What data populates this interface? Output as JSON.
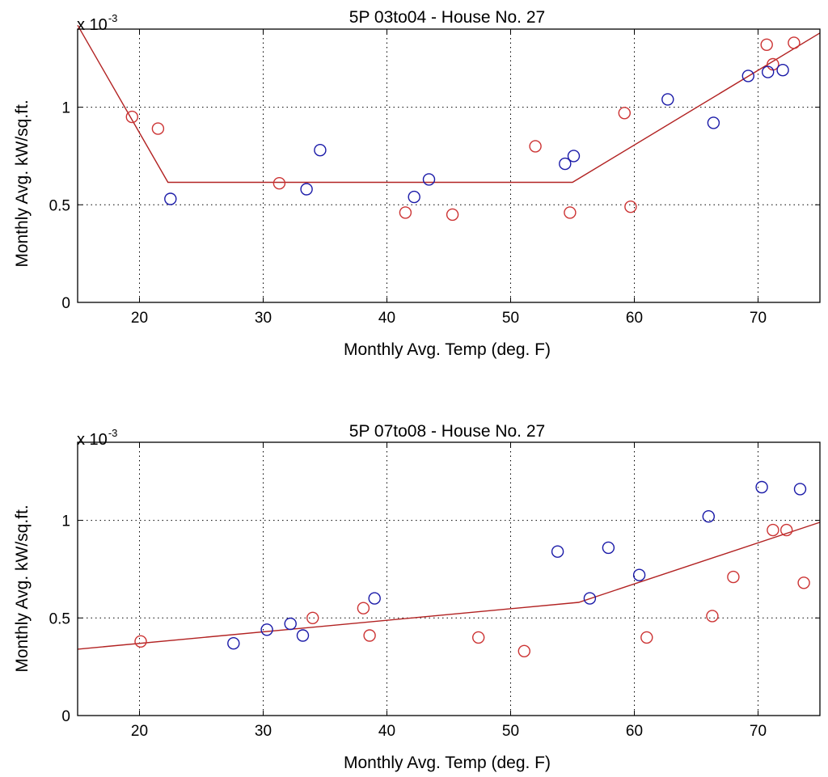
{
  "chart_data": [
    {
      "type": "scatter",
      "title": "5P 03to04 - House No. 27",
      "xlabel": "Monthly Avg. Temp (deg. F)",
      "ylabel": "Monthly Avg. kW/sq.ft.",
      "y_scale_base": "x 10",
      "y_scale_exponent": "-3",
      "xlim": [
        15,
        75
      ],
      "ylim": [
        0,
        1.4
      ],
      "xticks": [
        20,
        30,
        40,
        50,
        60,
        70
      ],
      "xtick_labels": [
        "20",
        "30",
        "40",
        "50",
        "60",
        "70"
      ],
      "yticks": [
        0,
        0.5,
        1
      ],
      "ytick_labels": [
        "0",
        "0.5",
        "1"
      ],
      "grid": true,
      "colors": {
        "series_red": "#cc3333",
        "series_blue": "#1a1aa8",
        "fit_line": "#b22222"
      },
      "series": [
        {
          "name": "red",
          "marker": "circle",
          "x": [
            19.4,
            21.5,
            31.3,
            41.5,
            45.3,
            52.0,
            54.8,
            59.2,
            59.7,
            70.7,
            71.2,
            72.9
          ],
          "y": [
            0.95,
            0.89,
            0.61,
            0.46,
            0.45,
            0.8,
            0.46,
            0.97,
            0.49,
            1.32,
            1.22,
            1.33
          ]
        },
        {
          "name": "blue",
          "marker": "circle",
          "x": [
            22.5,
            33.5,
            34.6,
            42.2,
            43.4,
            54.4,
            55.1,
            62.7,
            66.4,
            69.2,
            70.8,
            72.0
          ],
          "y": [
            0.53,
            0.58,
            0.78,
            0.54,
            0.63,
            0.71,
            0.75,
            1.04,
            0.92,
            1.16,
            1.18,
            1.19
          ]
        }
      ],
      "fit_line": {
        "x": [
          15,
          22.3,
          55.0,
          75
        ],
        "y": [
          1.42,
          0.615,
          0.615,
          1.38
        ]
      }
    },
    {
      "type": "scatter",
      "title": "5P 07to08 - House No. 27",
      "xlabel": "Monthly Avg. Temp (deg. F)",
      "ylabel": "Monthly Avg. kW/sq.ft.",
      "y_scale_base": "x 10",
      "y_scale_exponent": "-3",
      "xlim": [
        15,
        75
      ],
      "ylim": [
        0,
        1.4
      ],
      "xticks": [
        20,
        30,
        40,
        50,
        60,
        70
      ],
      "xtick_labels": [
        "20",
        "30",
        "40",
        "50",
        "60",
        "70"
      ],
      "yticks": [
        0,
        0.5,
        1
      ],
      "ytick_labels": [
        "0",
        "0.5",
        "1"
      ],
      "grid": true,
      "colors": {
        "series_red": "#cc3333",
        "series_blue": "#1a1aa8",
        "fit_line": "#b22222"
      },
      "series": [
        {
          "name": "red",
          "marker": "circle",
          "x": [
            20.1,
            34.0,
            38.1,
            38.6,
            47.4,
            51.1,
            61.0,
            66.3,
            68.0,
            71.2,
            72.3,
            73.7
          ],
          "y": [
            0.38,
            0.5,
            0.55,
            0.41,
            0.4,
            0.33,
            0.4,
            0.51,
            0.71,
            0.95,
            0.95,
            0.68
          ]
        },
        {
          "name": "blue",
          "marker": "circle",
          "x": [
            27.6,
            30.3,
            32.2,
            33.2,
            39.0,
            53.8,
            56.4,
            57.9,
            60.4,
            66.0,
            70.3,
            73.4
          ],
          "y": [
            0.37,
            0.44,
            0.47,
            0.41,
            0.6,
            0.84,
            0.6,
            0.86,
            0.72,
            1.02,
            1.17,
            1.16
          ]
        }
      ],
      "fit_line": {
        "x": [
          15,
          55.5,
          75
        ],
        "y": [
          0.34,
          0.58,
          0.99
        ]
      }
    }
  ]
}
